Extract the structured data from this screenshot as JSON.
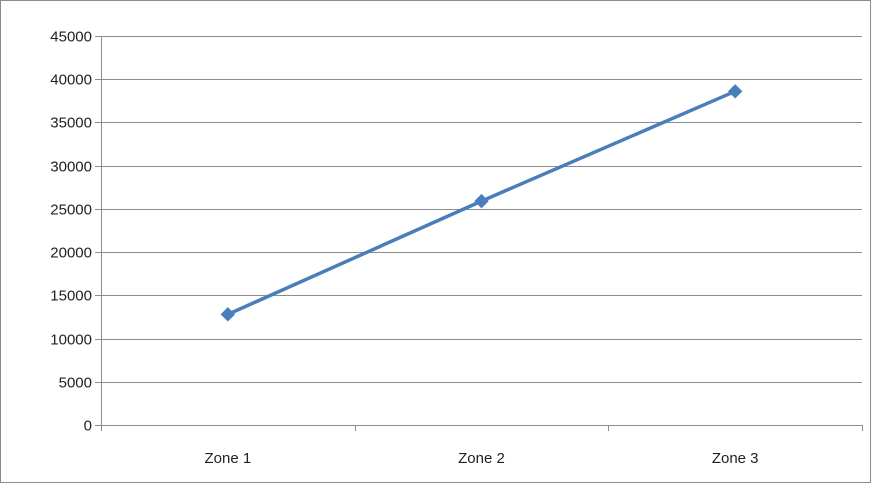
{
  "chart_data": {
    "type": "line",
    "title": "",
    "xlabel": "",
    "ylabel": "",
    "categories": [
      "Zone 1",
      "Zone 2",
      "Zone 3"
    ],
    "series": [
      {
        "values": [
          12800,
          25900,
          38600
        ],
        "color": "#4a7ebb",
        "marker": "diamond"
      }
    ],
    "ylim": [
      0,
      45000
    ],
    "yticks": [
      0,
      5000,
      10000,
      15000,
      20000,
      25000,
      30000,
      35000,
      40000,
      45000
    ],
    "grid": true,
    "legend": "none"
  }
}
